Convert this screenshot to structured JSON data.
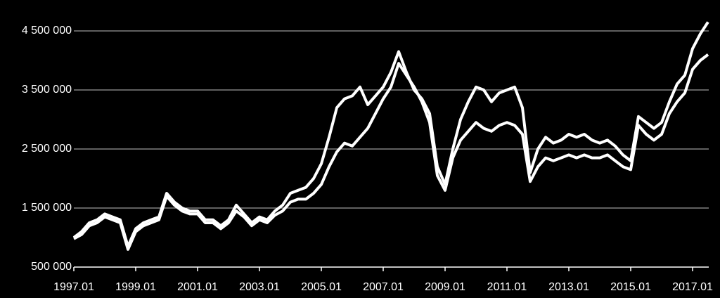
{
  "chart_data": {
    "type": "line",
    "x": [
      "1997.01",
      "1997.04",
      "1997.07",
      "1997.10",
      "1998.01",
      "1998.04",
      "1998.07",
      "1998.10",
      "1999.01",
      "1999.04",
      "1999.07",
      "1999.10",
      "2000.01",
      "2000.04",
      "2000.07",
      "2000.10",
      "2001.01",
      "2001.04",
      "2001.07",
      "2001.10",
      "2002.01",
      "2002.04",
      "2002.07",
      "2002.10",
      "2003.01",
      "2003.04",
      "2003.07",
      "2003.10",
      "2004.01",
      "2004.04",
      "2004.07",
      "2004.10",
      "2005.01",
      "2005.04",
      "2005.07",
      "2005.10",
      "2006.01",
      "2006.04",
      "2006.07",
      "2006.10",
      "2007.01",
      "2007.04",
      "2007.07",
      "2007.10",
      "2008.01",
      "2008.04",
      "2008.07",
      "2008.10",
      "2009.01",
      "2009.04",
      "2009.07",
      "2009.10",
      "2010.01",
      "2010.04",
      "2010.07",
      "2010.10",
      "2011.01",
      "2011.04",
      "2011.07",
      "2011.10",
      "2012.01",
      "2012.04",
      "2012.07",
      "2012.10",
      "2013.01",
      "2013.04",
      "2013.07",
      "2013.10",
      "2014.01",
      "2014.04",
      "2014.07",
      "2014.10",
      "2015.01",
      "2015.04",
      "2015.07",
      "2015.10",
      "2016.01",
      "2016.04",
      "2016.07",
      "2016.10",
      "2017.01",
      "2017.04",
      "2017.07"
    ],
    "series": [
      {
        "color": "#ffffff",
        "values": [
          1000000,
          1100000,
          1250000,
          1300000,
          1400000,
          1350000,
          1300000,
          850000,
          1150000,
          1250000,
          1300000,
          1350000,
          1750000,
          1600000,
          1500000,
          1450000,
          1450000,
          1300000,
          1300000,
          1200000,
          1300000,
          1550000,
          1400000,
          1250000,
          1350000,
          1300000,
          1450000,
          1550000,
          1750000,
          1800000,
          1850000,
          2000000,
          2250000,
          2700000,
          3200000,
          3350000,
          3400000,
          3550000,
          3250000,
          3400000,
          3550000,
          3800000,
          4150000,
          3800000,
          3500000,
          3350000,
          3100000,
          2200000,
          1900000,
          2500000,
          3000000,
          3300000,
          3550000,
          3500000,
          3300000,
          3450000,
          3500000,
          3550000,
          3200000,
          2100000,
          2500000,
          2700000,
          2600000,
          2650000,
          2750000,
          2700000,
          2750000,
          2650000,
          2600000,
          2650000,
          2550000,
          2400000,
          2300000,
          3050000,
          2950000,
          2850000,
          2950000,
          3300000,
          3600000,
          3750000,
          4200000,
          4450000,
          4650000
        ]
      },
      {
        "color": "#ffffff",
        "values": [
          980000,
          1050000,
          1200000,
          1250000,
          1350000,
          1300000,
          1250000,
          800000,
          1100000,
          1200000,
          1250000,
          1300000,
          1700000,
          1550000,
          1450000,
          1400000,
          1400000,
          1250000,
          1250000,
          1150000,
          1250000,
          1450000,
          1350000,
          1200000,
          1300000,
          1250000,
          1380000,
          1450000,
          1600000,
          1650000,
          1650000,
          1750000,
          1900000,
          2200000,
          2450000,
          2600000,
          2550000,
          2700000,
          2850000,
          3100000,
          3350000,
          3550000,
          3950000,
          3750000,
          3550000,
          3300000,
          2950000,
          2050000,
          1800000,
          2350000,
          2650000,
          2800000,
          2950000,
          2850000,
          2800000,
          2900000,
          2950000,
          2900000,
          2750000,
          1950000,
          2200000,
          2350000,
          2300000,
          2350000,
          2400000,
          2350000,
          2400000,
          2350000,
          2350000,
          2400000,
          2300000,
          2200000,
          2150000,
          2900000,
          2750000,
          2650000,
          2750000,
          3100000,
          3300000,
          3450000,
          3850000,
          4000000,
          4100000
        ]
      }
    ],
    "xticks": [
      "1997.01",
      "1999.01",
      "2001.01",
      "2003.01",
      "2005.01",
      "2007.01",
      "2009.01",
      "2011.01",
      "2013.01",
      "2015.01",
      "2017.01"
    ],
    "ylim": [
      500000,
      5000000
    ],
    "yticks": [
      {
        "value": 500000,
        "label": "500 000"
      },
      {
        "value": 1500000,
        "label": "1 500 000"
      },
      {
        "value": 2500000,
        "label": "2 500 000"
      },
      {
        "value": 3500000,
        "label": "3 500 000"
      },
      {
        "value": 4500000,
        "label": "4 500 000"
      }
    ],
    "grid": true
  }
}
